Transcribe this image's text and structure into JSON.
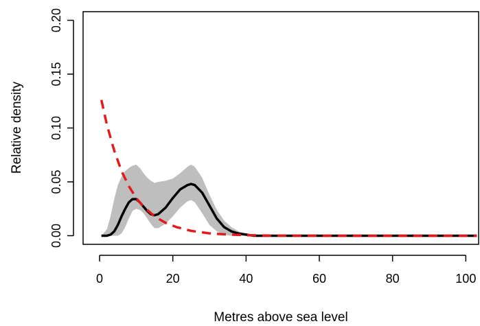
{
  "chart_data": {
    "type": "line",
    "title": "",
    "xlabel": "Metres above sea level",
    "ylabel": "Relative density",
    "xlim": [
      -4.5,
      103.5
    ],
    "ylim": [
      -0.008,
      0.208
    ],
    "x_ticks": [
      0,
      20,
      40,
      60,
      80,
      100
    ],
    "x_tick_labels": [
      "0",
      "20",
      "40",
      "60",
      "80",
      "100"
    ],
    "y_ticks": [
      0.0,
      0.05,
      0.1,
      0.15,
      0.2
    ],
    "y_tick_labels": [
      "0.00",
      "0.05",
      "0.10",
      "0.15",
      "0.20"
    ],
    "grid": false,
    "legend": "none",
    "colors": {
      "band": "#bebebe",
      "solid": "#000000",
      "dashed": "#e31a1c"
    },
    "band": {
      "x": [
        0.5,
        2,
        3,
        4,
        5,
        6,
        7,
        8,
        9,
        10,
        11,
        12,
        13,
        14,
        15,
        16,
        18,
        20,
        22,
        24,
        25,
        26,
        28,
        30,
        32,
        34,
        36,
        38,
        40,
        42,
        44,
        46,
        50,
        60,
        80,
        103
      ],
      "lower": [
        0,
        0,
        0,
        0,
        0,
        0.002,
        0.008,
        0.016,
        0.023,
        0.025,
        0.024,
        0.021,
        0.016,
        0.011,
        0.007,
        0.007,
        0.011,
        0.018,
        0.026,
        0.032,
        0.033,
        0.031,
        0.021,
        0.01,
        0.004,
        0.001,
        0,
        0,
        0,
        0,
        0,
        0,
        0,
        0,
        0,
        0
      ],
      "upper": [
        0,
        0.006,
        0.018,
        0.034,
        0.047,
        0.055,
        0.06,
        0.063,
        0.065,
        0.066,
        0.063,
        0.058,
        0.054,
        0.051,
        0.049,
        0.05,
        0.051,
        0.053,
        0.058,
        0.064,
        0.066,
        0.064,
        0.054,
        0.038,
        0.024,
        0.014,
        0.008,
        0.004,
        0.002,
        0.001,
        0,
        0,
        0,
        0,
        0,
        0
      ]
    },
    "series": [
      {
        "style": "solid",
        "x": [
          0.5,
          2,
          3,
          4,
          5,
          6,
          7,
          8,
          9,
          10,
          11,
          12,
          13,
          14,
          15,
          16,
          18,
          20,
          22,
          24,
          25,
          26,
          28,
          30,
          32,
          34,
          36,
          38,
          40,
          42,
          44,
          46,
          50,
          60,
          80,
          103
        ],
        "y": [
          0,
          0,
          0.001,
          0.004,
          0.01,
          0.018,
          0.025,
          0.031,
          0.034,
          0.034,
          0.031,
          0.027,
          0.023,
          0.02,
          0.019,
          0.02,
          0.026,
          0.035,
          0.043,
          0.047,
          0.048,
          0.047,
          0.04,
          0.028,
          0.016,
          0.008,
          0.004,
          0.002,
          0.001,
          0,
          0,
          0,
          0,
          0,
          0,
          0
        ]
      },
      {
        "style": "dashed",
        "x": [
          0.5,
          2,
          4,
          6,
          8,
          10,
          12,
          15,
          18,
          21,
          25,
          30,
          35,
          40,
          45,
          50,
          60,
          80,
          103
        ],
        "y": [
          0.126,
          0.103,
          0.079,
          0.06,
          0.046,
          0.035,
          0.027,
          0.018,
          0.012,
          0.008,
          0.0045,
          0.0022,
          0.0011,
          0.0005,
          0.0002,
          0.0001,
          0,
          0,
          0
        ]
      }
    ]
  }
}
